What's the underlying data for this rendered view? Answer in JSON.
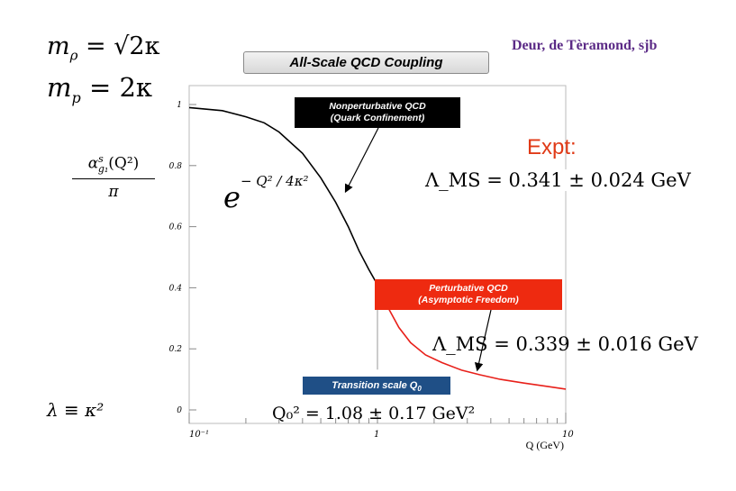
{
  "header": {
    "authors": "Deur, de Tèramond, sjb",
    "title": "All-Scale QCD Coupling"
  },
  "equations": {
    "m_rho_lhs": "m",
    "m_rho_sub": "ρ",
    "m_rho_rhs": " = √2κ",
    "m_p_lhs": "m",
    "m_p_sub": "p",
    "m_p_rhs": " = 2κ",
    "lambda_def": "λ ≡ κ²",
    "gaussian_base": "e",
    "gaussian_exp": "− Q² / 4κ²",
    "ylabel_num": "α",
    "ylabel_sup": "s",
    "ylabel_sub": "g₁",
    "ylabel_arg": "(Q²)",
    "ylabel_den": "π"
  },
  "annotations": {
    "nonpert_line1": "Nonperturbative QCD",
    "nonpert_line2": "(Quark Confinement)",
    "pert_line1": "Perturbative QCD",
    "pert_line2": "(Asymptotic Freedom)",
    "transition": "Transition scale Q",
    "transition_sub": "0",
    "q0_value": "Q₀² = 1.08 ± 0.17 GeV²",
    "expt": "Expt:",
    "lambda_expt": "Λ_MS = 0.341 ± 0.024 GeV",
    "lambda_theory": "Λ_MS = 0.339 ± 0.016 GeV"
  },
  "colors": {
    "nonpert_box": "#000000",
    "pert_box": "#ee2a10",
    "transition_box": "#1f4f86",
    "nonpert_curve": "#000000",
    "pert_curve": "#e8201a",
    "expt_text": "#e03a17",
    "authors_text": "#5b2a86"
  },
  "chart_data": {
    "type": "line",
    "xlabel": "Q (GeV)",
    "xscale": "log",
    "xlim": [
      0.1,
      10
    ],
    "ylim": [
      0,
      1.05
    ],
    "x_ticks": [
      {
        "value": 0.1,
        "label": "10⁻¹"
      },
      {
        "value": 1,
        "label": "1"
      },
      {
        "value": 10,
        "label": "10"
      }
    ],
    "y_ticks": [
      {
        "value": 0,
        "label": "0"
      },
      {
        "value": 0.2,
        "label": "0.2"
      },
      {
        "value": 0.4,
        "label": "0.4"
      },
      {
        "value": 0.6,
        "label": "0.6"
      },
      {
        "value": 0.8,
        "label": "0.8"
      },
      {
        "value": 1.0,
        "label": "1"
      }
    ],
    "grid": false,
    "series": [
      {
        "color": "#000000",
        "x": [
          0.1,
          0.15,
          0.2,
          0.25,
          0.3,
          0.4,
          0.5,
          0.6,
          0.7,
          0.8,
          0.9,
          1.0
        ],
        "y": [
          0.99,
          0.98,
          0.96,
          0.94,
          0.91,
          0.84,
          0.76,
          0.68,
          0.6,
          0.52,
          0.46,
          0.41
        ]
      },
      {
        "color": "#e8201a",
        "x": [
          1.0,
          1.15,
          1.3,
          1.5,
          1.8,
          2.2,
          2.8,
          3.5,
          4.5,
          6.0,
          8.0,
          10.0
        ],
        "y": [
          0.41,
          0.33,
          0.27,
          0.22,
          0.18,
          0.155,
          0.13,
          0.115,
          0.1,
          0.088,
          0.077,
          0.068
        ]
      }
    ],
    "transition_marker": {
      "x": 1.0,
      "y_from": 0.02,
      "y_to": 0.41
    }
  }
}
